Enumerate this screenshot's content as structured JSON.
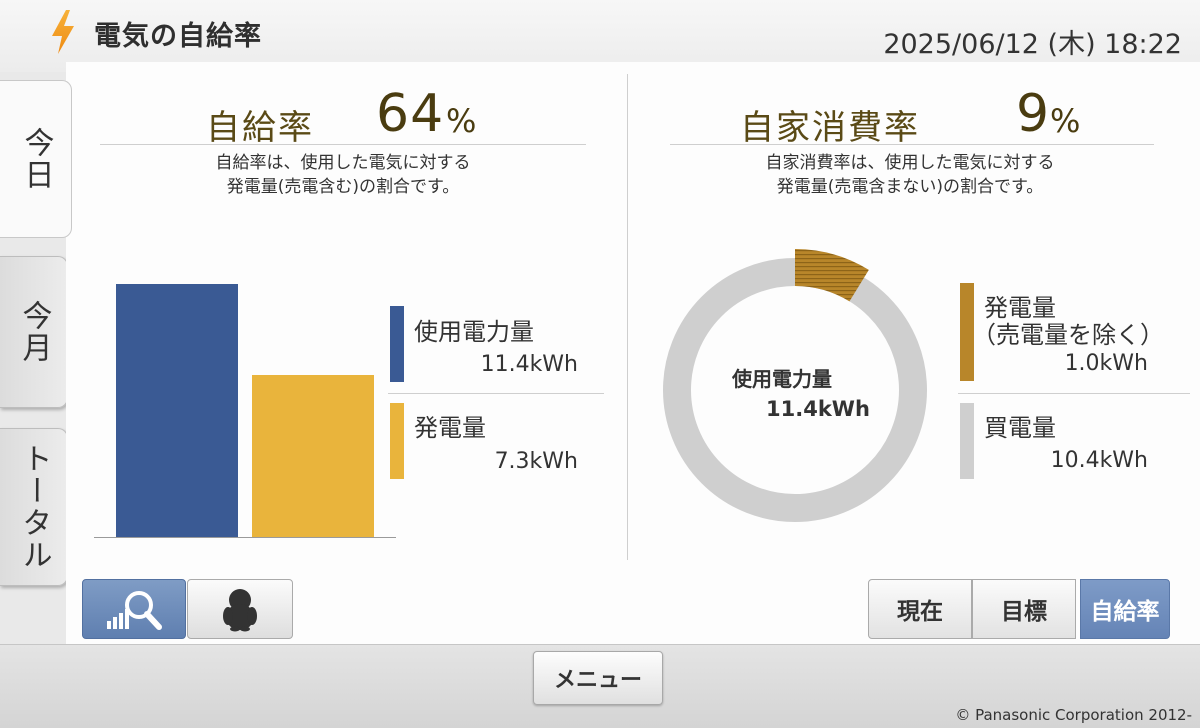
{
  "header": {
    "title": "電気の自給率",
    "datetime": "2025/06/12 (木) 18:22"
  },
  "side_tabs": [
    {
      "label": "今日",
      "active": true
    },
    {
      "label": "今月",
      "active": false
    },
    {
      "label": "トータル",
      "active": false
    }
  ],
  "self_sufficiency": {
    "label": "自給率",
    "value": "64",
    "unit": "%",
    "description_line1": "自給率は、使用した電気に対する",
    "description_line2": "発電量(売電含む)の割合です。",
    "legend": [
      {
        "name": "使用電力量",
        "value": "11.4kWh",
        "color": "#3a5a94"
      },
      {
        "name": "発電量",
        "value": "7.3kWh",
        "color": "#e9b43c"
      }
    ]
  },
  "self_consumption": {
    "label": "自家消費率",
    "value": "9",
    "unit": "%",
    "description_line1": "自家消費率は、使用した電気に対する",
    "description_line2": "発電量(売電含まない)の割合です。",
    "center_label": "使用電力量",
    "center_value": "11.4kWh",
    "legend": [
      {
        "name_line1": "発電量",
        "name_line2": "（売電量を除く）",
        "value": "1.0kWh",
        "color": "#b8862a"
      },
      {
        "name_line1": "買電量",
        "value": "10.4kWh",
        "color": "#cfcfcf"
      }
    ]
  },
  "chart_data": [
    {
      "type": "bar",
      "categories": [
        "使用電力量",
        "発電量"
      ],
      "values": [
        11.4,
        7.3
      ],
      "unit": "kWh",
      "colors": [
        "#3a5a94",
        "#e9b43c"
      ]
    },
    {
      "type": "pie",
      "labels": [
        "発電量（売電量を除く）",
        "買電量"
      ],
      "values": [
        1.0,
        10.4
      ],
      "unit": "kWh",
      "colors": [
        "#b8862a",
        "#cfcfcf"
      ]
    }
  ],
  "bottom_left_buttons": [
    {
      "icon": "search-graph-icon",
      "selected": true
    },
    {
      "icon": "penguin-icon",
      "selected": false
    }
  ],
  "view_buttons": [
    "現在",
    "目標",
    "自給率"
  ],
  "view_active": "自給率",
  "footer": {
    "menu_label": "メニュー",
    "copyright": "© Panasonic Corporation 2012-"
  }
}
